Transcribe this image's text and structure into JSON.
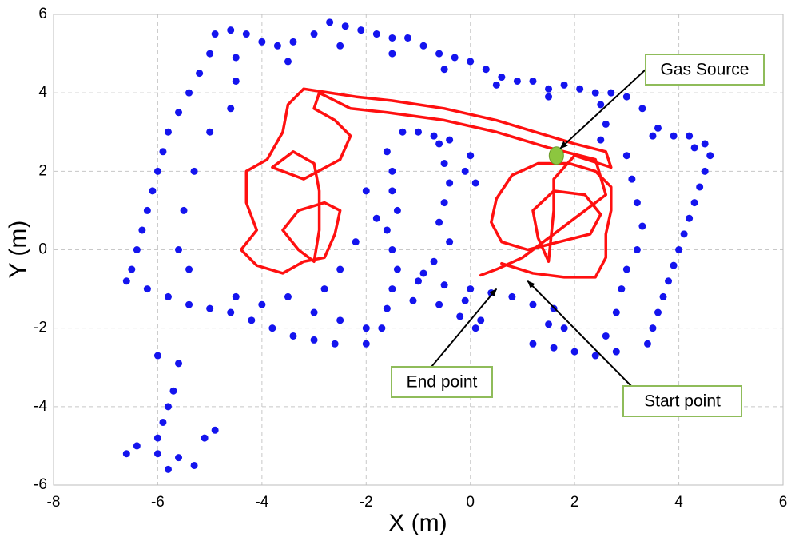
{
  "chart_data": {
    "type": "scatter",
    "xlabel": "X (m)",
    "ylabel": "Y (m)",
    "xlim": [
      -8,
      6
    ],
    "ylim": [
      -6,
      6
    ],
    "xticks": [
      -8,
      -6,
      -4,
      -2,
      0,
      2,
      4,
      6
    ],
    "yticks": [
      -6,
      -4,
      -2,
      0,
      2,
      4,
      6
    ],
    "grid": true,
    "series": [
      {
        "style": "points",
        "color": "#1414ee",
        "x": [
          -4.9,
          -4.6,
          -4.3,
          -4,
          -3.7,
          -3.4,
          -3,
          -2.7,
          -2.4,
          -2.1,
          -1.8,
          -1.5,
          -1.2,
          -0.9,
          -0.6,
          -0.3,
          0,
          0.3,
          0.6,
          0.9,
          1.2,
          1.5,
          1.8,
          2.1,
          2.4,
          2.7,
          3,
          3.3,
          3.6,
          3.9,
          4.2,
          4.5,
          -4.5,
          -3.5,
          -2.5,
          -1.5,
          -0.5,
          0.5,
          1.5,
          2.5,
          3.5,
          4.3,
          4.6,
          4.5,
          4.4,
          4.3,
          4.2,
          4.1,
          4,
          3.9,
          3.8,
          3.7,
          3.6,
          3.5,
          3.4,
          3,
          3.1,
          3.2,
          3.3,
          3.2,
          3,
          2.9,
          2.8,
          2.6,
          2.6,
          2.5,
          1.2,
          1.6,
          2,
          2.4,
          2.8,
          1.5,
          1.8,
          -0.9,
          -0.5,
          -0.1,
          0.2,
          0,
          0.4,
          0.8,
          1.2,
          1.6,
          -0.6,
          -0.2,
          0.1,
          -1.6,
          -1.5,
          -1.5,
          -1.4,
          -1.6,
          -1.5,
          -1.4,
          -1.5,
          -1.6,
          -1.7,
          -2,
          -0.6,
          -0.5,
          -0.4,
          -0.5,
          -0.6,
          -0.4,
          -0.7,
          -1,
          -1.1,
          0,
          -0.1,
          0.1,
          -2,
          -1.8,
          -2.2,
          -2.5,
          -2.8,
          -3,
          -2.5,
          -1,
          -1.3,
          -0.7,
          -0.4,
          -5,
          -5.2,
          -5.4,
          -5.6,
          -5.8,
          -5.9,
          -6,
          -6.1,
          -6.2,
          -6.3,
          -6.4,
          -6.5,
          -6.6,
          -4.5,
          -4.6,
          -5,
          -5.3,
          -5.5,
          -5.6,
          -5.4,
          -6.2,
          -5.8,
          -5.4,
          -5,
          -4.6,
          -4.2,
          -3.8,
          -3.4,
          -3,
          -2.6,
          -4.5,
          -4,
          -3.5,
          -2,
          -6,
          -5.6,
          -5.7,
          -5.8,
          -5.9,
          -6,
          -6.4,
          -6,
          -5.6,
          -5.3,
          -6.6,
          -5.8,
          -5.1,
          -4.9
        ],
        "y": [
          5.5,
          5.6,
          5.5,
          5.3,
          5.2,
          5.3,
          5.5,
          5.8,
          5.7,
          5.6,
          5.5,
          5.4,
          5.4,
          5.2,
          5,
          4.9,
          4.8,
          4.6,
          4.4,
          4.3,
          4.3,
          4.1,
          4.2,
          4.1,
          4,
          4,
          3.9,
          3.6,
          3.1,
          2.9,
          2.9,
          2.7,
          4.9,
          4.8,
          5.2,
          5,
          4.6,
          4.2,
          3.9,
          3.7,
          2.9,
          2.6,
          2.4,
          2,
          1.6,
          1.2,
          0.8,
          0.4,
          0,
          -0.4,
          -0.8,
          -1.2,
          -1.6,
          -2,
          -2.4,
          2.4,
          1.8,
          1.2,
          0.6,
          0,
          -0.5,
          -1,
          -1.6,
          -2.2,
          3.2,
          2.8,
          -2.4,
          -2.5,
          -2.6,
          -2.7,
          -2.6,
          -1.9,
          -2,
          -0.6,
          -0.9,
          -1.3,
          -1.8,
          -1,
          -1.1,
          -1.2,
          -1.4,
          -1.5,
          -1.4,
          -1.7,
          -2,
          2.5,
          2,
          1.5,
          1,
          0.5,
          0,
          -0.5,
          -1,
          -1.5,
          -2,
          -2.4,
          2.7,
          2.2,
          1.7,
          1.2,
          0.7,
          0.2,
          -0.3,
          -0.8,
          -1.3,
          2.4,
          2,
          1.7,
          1.5,
          0.8,
          0.2,
          -0.5,
          -1,
          -1.6,
          -1.8,
          3,
          3,
          2.9,
          2.8,
          5,
          4.5,
          4,
          3.5,
          3,
          2.5,
          2,
          1.5,
          1,
          0.5,
          0,
          -0.5,
          -0.8,
          4.3,
          3.6,
          3,
          2,
          1,
          0,
          -0.5,
          -1,
          -1.2,
          -1.4,
          -1.5,
          -1.6,
          -1.8,
          -2,
          -2.2,
          -2.3,
          -2.4,
          -1.2,
          -1.4,
          -1.2,
          -2,
          -2.7,
          -2.9,
          -3.6,
          -4,
          -4.4,
          -4.8,
          -5,
          -5.2,
          -5.3,
          -5.5,
          -5.2,
          -5.6,
          -4.8,
          -4.6
        ]
      },
      {
        "style": "line",
        "color": "#ff1010",
        "x": [
          0.6,
          1.2,
          1.8,
          2.4,
          2.6,
          2.6,
          2.7,
          2.7,
          2.4,
          1.9,
          1.3,
          0.8,
          0.5,
          0.4,
          0.6,
          1.1,
          1.7,
          2.3,
          2.5,
          2.2,
          1.6,
          1.2,
          1.3,
          1.5,
          1.6,
          1.6,
          2,
          2.7,
          2.6,
          2,
          1.5,
          0.5,
          -0.5,
          -1.5,
          -2.2,
          -2.7,
          -3.2,
          -3.5,
          -3.6,
          -3.9,
          -4.3,
          -4.3,
          -4.1,
          -4.4,
          -4.1,
          -3.6,
          -3.2,
          -2.8,
          -2.6,
          -2.5,
          -2.8,
          -3.3,
          -3.6,
          -3.3,
          -3,
          -2.9,
          -2.9,
          -3,
          -3.4,
          -3.8,
          -3.2,
          -2.5,
          -2.3,
          -2.6,
          -3,
          -2.9,
          -2.3,
          -1.6,
          -0.5,
          0.5,
          1.5,
          2.4,
          2.6,
          1.8,
          1,
          0.5,
          0.2
        ],
        "y": [
          -0.35,
          -0.6,
          -0.7,
          -0.7,
          -0.2,
          0.4,
          1,
          1.6,
          2,
          2.2,
          2.2,
          1.9,
          1.3,
          0.7,
          0.2,
          0,
          0.2,
          0.4,
          0.9,
          1.4,
          1.5,
          1,
          0.3,
          -0.3,
          1,
          1.8,
          2.4,
          2.1,
          2.5,
          2.7,
          2.9,
          3.3,
          3.6,
          3.8,
          3.9,
          4,
          4.1,
          3.7,
          3,
          2.3,
          2,
          1.2,
          0.5,
          0,
          -0.4,
          -0.6,
          -0.3,
          -0.2,
          0.4,
          1,
          1.2,
          1,
          0.5,
          0,
          -0.3,
          0.5,
          1.5,
          2.2,
          2.5,
          2.1,
          1.8,
          2.3,
          2.9,
          3.3,
          3.6,
          4,
          3.6,
          3.5,
          3.3,
          3,
          2.6,
          2.3,
          1.4,
          0.6,
          -0.2,
          -0.5,
          -0.65
        ]
      }
    ],
    "annotations": [
      {
        "text": "Gas Source",
        "x": 1.65,
        "y": 2.4,
        "marker_color": "#8cc63f"
      },
      {
        "text": "End point",
        "x": 0.5,
        "y": -1.0
      },
      {
        "text": "Start point",
        "x": 1.1,
        "y": -0.8
      }
    ]
  }
}
